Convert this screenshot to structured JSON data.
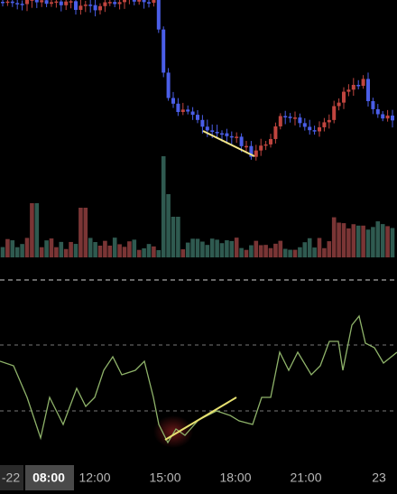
{
  "time_axis": {
    "labels": [
      "-22",
      "08:00",
      "12:00",
      "15:00",
      "18:00",
      "21:00",
      "23"
    ]
  }
}
